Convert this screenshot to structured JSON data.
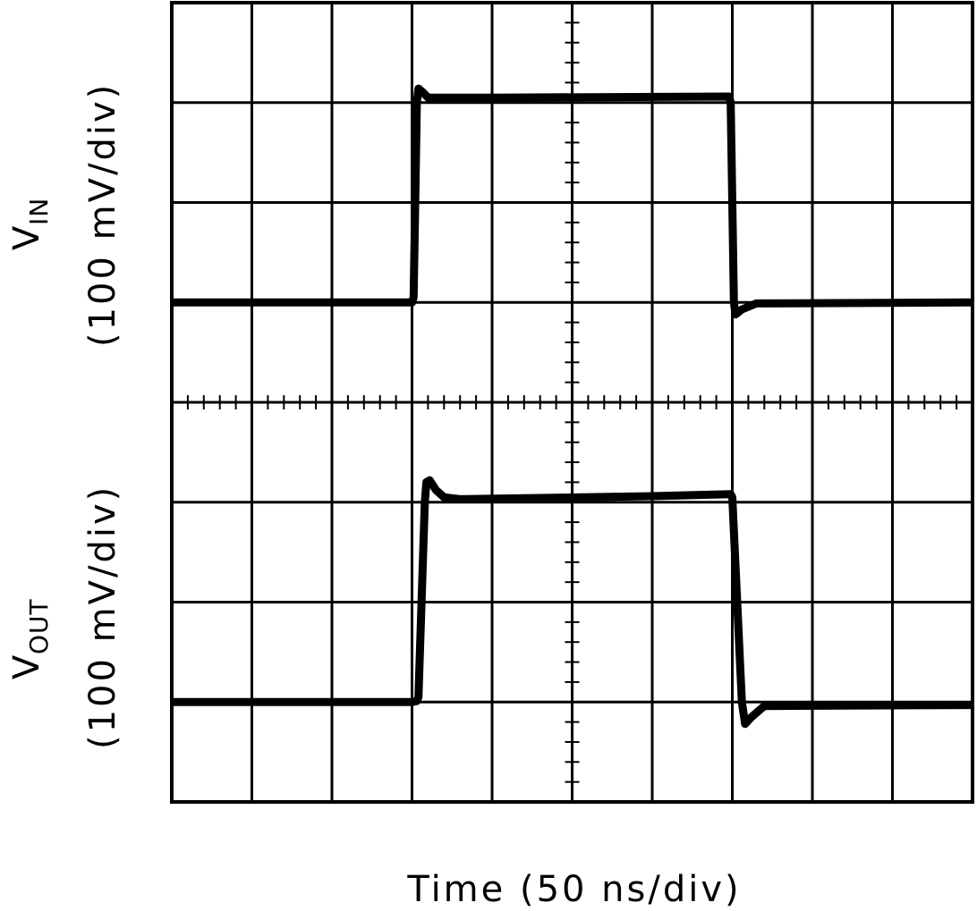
{
  "chart_data": [
    {
      "type": "line",
      "ylabel_main": "V",
      "ylabel_sub": "IN",
      "ylabel_unit": "(100 mV/div)",
      "xlabel": "Time (50 ns/div)",
      "xlim": [
        0,
        500
      ],
      "ylim": [
        0,
        400
      ],
      "grid": true,
      "divisions": {
        "x": 10,
        "y": 4
      },
      "color": "#000000",
      "x": [
        0,
        150,
        151,
        152,
        153,
        154,
        157,
        160,
        200,
        348,
        349,
        350,
        351,
        352,
        356,
        365,
        500
      ],
      "y": [
        100,
        100,
        105,
        200,
        300,
        314,
        310,
        305,
        305,
        306,
        300,
        200,
        100,
        88,
        93,
        99,
        100
      ]
    },
    {
      "type": "line",
      "ylabel_main": "V",
      "ylabel_sub": "OUT",
      "ylabel_unit": "(100 mV/div)",
      "xlim": [
        0,
        500
      ],
      "ylim": [
        0,
        400
      ],
      "grid": true,
      "divisions": {
        "x": 10,
        "y": 4
      },
      "color": "#000000",
      "x": [
        0,
        150,
        153,
        154,
        158,
        159,
        161,
        165,
        170,
        180,
        300,
        349,
        350,
        356,
        358,
        362,
        370,
        500
      ],
      "y": [
        100,
        100,
        101,
        105,
        300,
        320,
        322,
        312,
        305,
        303,
        306,
        308,
        305,
        100,
        78,
        85,
        96,
        97
      ]
    }
  ]
}
